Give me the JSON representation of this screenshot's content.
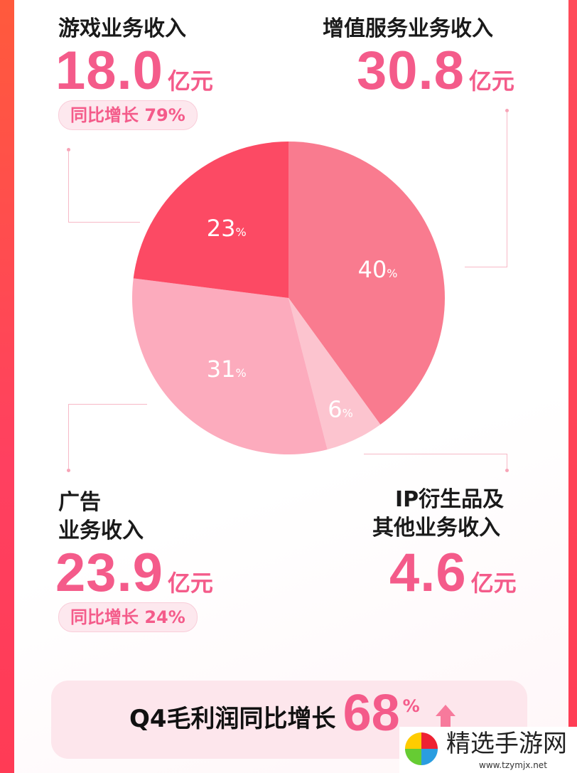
{
  "chart_data": {
    "type": "pie",
    "slices": [
      {
        "label": "增值服务业务收入",
        "value": 30.8,
        "percent": 40,
        "color": "#f97b8f"
      },
      {
        "label": "IP衍生品及其他业务收入",
        "value": 4.6,
        "percent": 6,
        "color": "#fcc4cf"
      },
      {
        "label": "广告业务收入",
        "value": 23.9,
        "percent": 31,
        "color": "#fcabbd"
      },
      {
        "label": "游戏业务收入",
        "value": 18.0,
        "percent": 23,
        "color": "#fc4a64"
      }
    ],
    "unit": "亿元"
  },
  "slice_labels": {
    "pct_sign": "%"
  },
  "game": {
    "label": "游戏业务收入",
    "value": "18.0",
    "unit": "亿元",
    "yoy": "同比增长 79%"
  },
  "vas": {
    "label": "增值服务业务收入",
    "value": "30.8",
    "unit": "亿元"
  },
  "ads": {
    "label_line1": "广告",
    "label_line2": "业务收入",
    "value": "23.9",
    "unit": "亿元",
    "yoy": "同比增长 24%"
  },
  "ip": {
    "label_line1": "IP衍生品及",
    "label_line2": "其他业务收入",
    "value": "4.6",
    "unit": "亿元"
  },
  "footer": {
    "text": "Q4毛利润同比增长",
    "value": "68",
    "pct_sign": "%",
    "icon": "arrow-up-icon"
  },
  "watermark": {
    "name": "精选手游网",
    "url": "www.tzymjx.net"
  }
}
